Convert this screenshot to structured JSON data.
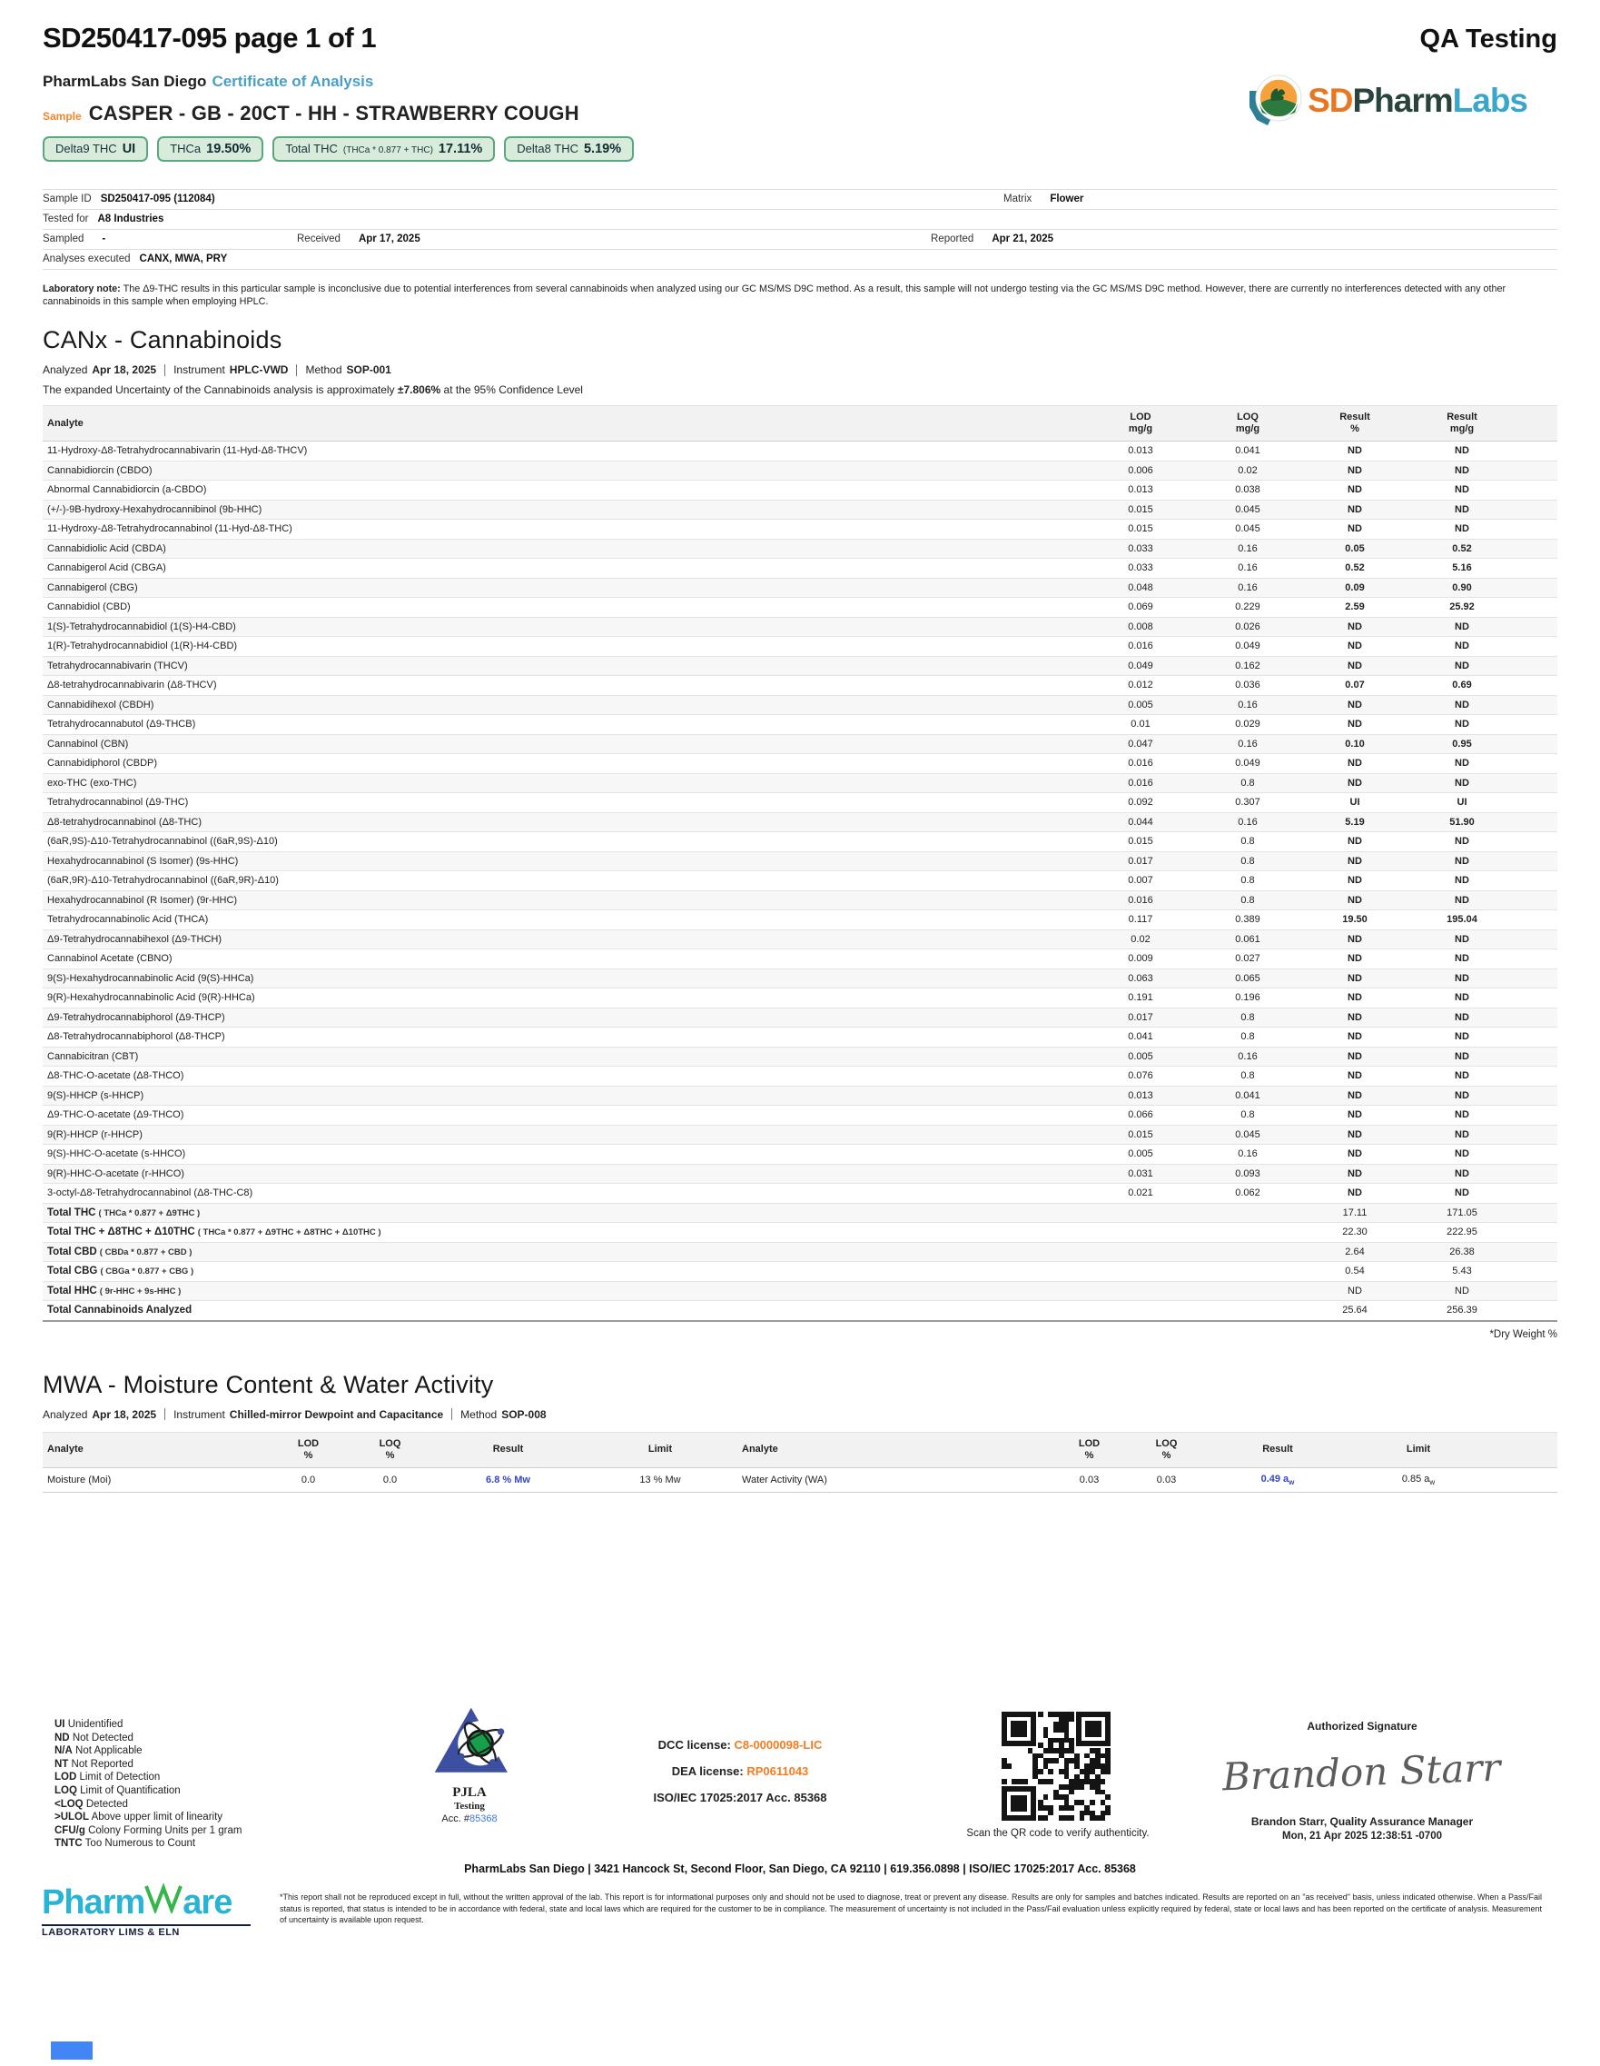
{
  "page": {
    "doc_id": "SD250417-095 page 1 of 1",
    "corner_label": "QA Testing"
  },
  "header": {
    "lab_name": "PharmLabs San Diego",
    "doc_type": "Certificate of Analysis",
    "sample_label": "Sample",
    "sample_name": "CASPER - GB - 20CT - HH - STRAWBERRY COUGH",
    "badges": [
      {
        "label": "Delta9 THC",
        "formula": "",
        "value": "UI"
      },
      {
        "label": "THCa",
        "formula": "",
        "value": "19.50%"
      },
      {
        "label": "Total THC",
        "formula": "(THCa * 0.877 + THC)",
        "value": "17.11%"
      },
      {
        "label": "Delta8 THC",
        "formula": "",
        "value": "5.19%"
      }
    ],
    "brand": {
      "sd": "SD",
      "pharm": "Pharm",
      "labs": "Labs"
    }
  },
  "sample_info": {
    "sample_id_label": "Sample ID",
    "sample_id": "SD250417-095 (112084)",
    "matrix_label": "Matrix",
    "matrix": "Flower",
    "tested_for_label": "Tested for",
    "tested_for": "A8 Industries",
    "sampled_label": "Sampled",
    "sampled": "-",
    "received_label": "Received",
    "received": "Apr 17, 2025",
    "reported_label": "Reported",
    "reported": "Apr 21, 2025",
    "analyses_label": "Analyses executed",
    "analyses": "CANX, MWA, PRY"
  },
  "lab_note": {
    "label": "Laboratory note:",
    "text": "The Δ9-THC results in this particular sample is inconclusive due to potential interferences from several cannabinoids when analyzed using our GC MS/MS D9C method. As a result, this sample will not undergo testing via the GC MS/MS D9C method. However, there are currently no interferences detected with any other cannabinoids in this sample when employing HPLC."
  },
  "canx": {
    "title": "CANx - Cannabinoids",
    "meta": {
      "analyzed_label": "Analyzed",
      "analyzed": "Apr 18, 2025",
      "instrument_label": "Instrument",
      "instrument": "HPLC-VWD",
      "method_label": "Method",
      "method": "SOP-001"
    },
    "uncertainty_pre": "The expanded Uncertainty of the Cannabinoids analysis is approximately ",
    "uncertainty_bold": "±7.806%",
    "uncertainty_post": " at the 95% Confidence Level",
    "columns": {
      "analyte": "Analyte",
      "lod": "LOD",
      "loq": "LOQ",
      "result1": "Result",
      "result2": "Result",
      "unit_mgg": "mg/g",
      "unit_pct": "%"
    },
    "rows": [
      {
        "analyte": "11-Hydroxy-Δ8-Tetrahydrocannabivarin (11-Hyd-Δ8-THCV)",
        "lod": "0.013",
        "loq": "0.041",
        "pct": "ND",
        "mgg": "ND"
      },
      {
        "analyte": "Cannabidiorcin (CBDO)",
        "lod": "0.006",
        "loq": "0.02",
        "pct": "ND",
        "mgg": "ND"
      },
      {
        "analyte": "Abnormal Cannabidiorcin (a-CBDO)",
        "lod": "0.013",
        "loq": "0.038",
        "pct": "ND",
        "mgg": "ND"
      },
      {
        "analyte": "(+/-)-9B-hydroxy-Hexahydrocannibinol (9b-HHC)",
        "lod": "0.015",
        "loq": "0.045",
        "pct": "ND",
        "mgg": "ND"
      },
      {
        "analyte": "11-Hydroxy-Δ8-Tetrahydrocannabinol (11-Hyd-Δ8-THC)",
        "lod": "0.015",
        "loq": "0.045",
        "pct": "ND",
        "mgg": "ND"
      },
      {
        "analyte": "Cannabidiolic Acid (CBDA)",
        "lod": "0.033",
        "loq": "0.16",
        "pct": "0.05",
        "mgg": "0.52"
      },
      {
        "analyte": "Cannabigerol Acid (CBGA)",
        "lod": "0.033",
        "loq": "0.16",
        "pct": "0.52",
        "mgg": "5.16"
      },
      {
        "analyte": "Cannabigerol (CBG)",
        "lod": "0.048",
        "loq": "0.16",
        "pct": "0.09",
        "mgg": "0.90"
      },
      {
        "analyte": "Cannabidiol (CBD)",
        "lod": "0.069",
        "loq": "0.229",
        "pct": "2.59",
        "mgg": "25.92"
      },
      {
        "analyte": "1(S)-Tetrahydrocannabidiol (1(S)-H4-CBD)",
        "lod": "0.008",
        "loq": "0.026",
        "pct": "ND",
        "mgg": "ND"
      },
      {
        "analyte": "1(R)-Tetrahydrocannabidiol (1(R)-H4-CBD)",
        "lod": "0.016",
        "loq": "0.049",
        "pct": "ND",
        "mgg": "ND"
      },
      {
        "analyte": "Tetrahydrocannabivarin (THCV)",
        "lod": "0.049",
        "loq": "0.162",
        "pct": "ND",
        "mgg": "ND"
      },
      {
        "analyte": "Δ8-tetrahydrocannabivarin (Δ8-THCV)",
        "lod": "0.012",
        "loq": "0.036",
        "pct": "0.07",
        "mgg": "0.69"
      },
      {
        "analyte": "Cannabidihexol (CBDH)",
        "lod": "0.005",
        "loq": "0.16",
        "pct": "ND",
        "mgg": "ND"
      },
      {
        "analyte": "Tetrahydrocannabutol (Δ9-THCB)",
        "lod": "0.01",
        "loq": "0.029",
        "pct": "ND",
        "mgg": "ND"
      },
      {
        "analyte": "Cannabinol (CBN)",
        "lod": "0.047",
        "loq": "0.16",
        "pct": "0.10",
        "mgg": "0.95"
      },
      {
        "analyte": "Cannabidiphorol (CBDP)",
        "lod": "0.016",
        "loq": "0.049",
        "pct": "ND",
        "mgg": "ND"
      },
      {
        "analyte": "exo-THC (exo-THC)",
        "lod": "0.016",
        "loq": "0.8",
        "pct": "ND",
        "mgg": "ND"
      },
      {
        "analyte": "Tetrahydrocannabinol (Δ9-THC)",
        "lod": "0.092",
        "loq": "0.307",
        "pct": "UI",
        "mgg": "UI"
      },
      {
        "analyte": "Δ8-tetrahydrocannabinol (Δ8-THC)",
        "lod": "0.044",
        "loq": "0.16",
        "pct": "5.19",
        "mgg": "51.90"
      },
      {
        "analyte": "(6aR,9S)-Δ10-Tetrahydrocannabinol ((6aR,9S)-Δ10)",
        "lod": "0.015",
        "loq": "0.8",
        "pct": "ND",
        "mgg": "ND"
      },
      {
        "analyte": "Hexahydrocannabinol (S Isomer) (9s-HHC)",
        "lod": "0.017",
        "loq": "0.8",
        "pct": "ND",
        "mgg": "ND"
      },
      {
        "analyte": "(6aR,9R)-Δ10-Tetrahydrocannabinol ((6aR,9R)-Δ10)",
        "lod": "0.007",
        "loq": "0.8",
        "pct": "ND",
        "mgg": "ND"
      },
      {
        "analyte": "Hexahydrocannabinol (R Isomer) (9r-HHC)",
        "lod": "0.016",
        "loq": "0.8",
        "pct": "ND",
        "mgg": "ND"
      },
      {
        "analyte": "Tetrahydrocannabinolic Acid (THCA)",
        "lod": "0.117",
        "loq": "0.389",
        "pct": "19.50",
        "mgg": "195.04"
      },
      {
        "analyte": "Δ9-Tetrahydrocannabihexol (Δ9-THCH)",
        "lod": "0.02",
        "loq": "0.061",
        "pct": "ND",
        "mgg": "ND"
      },
      {
        "analyte": "Cannabinol Acetate (CBNO)",
        "lod": "0.009",
        "loq": "0.027",
        "pct": "ND",
        "mgg": "ND"
      },
      {
        "analyte": "9(S)-Hexahydrocannabinolic Acid (9(S)-HHCa)",
        "lod": "0.063",
        "loq": "0.065",
        "pct": "ND",
        "mgg": "ND"
      },
      {
        "analyte": "9(R)-Hexahydrocannabinolic Acid (9(R)-HHCa)",
        "lod": "0.191",
        "loq": "0.196",
        "pct": "ND",
        "mgg": "ND"
      },
      {
        "analyte": "Δ9-Tetrahydrocannabiphorol (Δ9-THCP)",
        "lod": "0.017",
        "loq": "0.8",
        "pct": "ND",
        "mgg": "ND"
      },
      {
        "analyte": "Δ8-Tetrahydrocannabiphorol (Δ8-THCP)",
        "lod": "0.041",
        "loq": "0.8",
        "pct": "ND",
        "mgg": "ND"
      },
      {
        "analyte": "Cannabicitran (CBT)",
        "lod": "0.005",
        "loq": "0.16",
        "pct": "ND",
        "mgg": "ND"
      },
      {
        "analyte": "Δ8-THC-O-acetate (Δ8-THCO)",
        "lod": "0.076",
        "loq": "0.8",
        "pct": "ND",
        "mgg": "ND"
      },
      {
        "analyte": "9(S)-HHCP (s-HHCP)",
        "lod": "0.013",
        "loq": "0.041",
        "pct": "ND",
        "mgg": "ND"
      },
      {
        "analyte": "Δ9-THC-O-acetate (Δ9-THCO)",
        "lod": "0.066",
        "loq": "0.8",
        "pct": "ND",
        "mgg": "ND"
      },
      {
        "analyte": "9(R)-HHCP (r-HHCP)",
        "lod": "0.015",
        "loq": "0.045",
        "pct": "ND",
        "mgg": "ND"
      },
      {
        "analyte": "9(S)-HHC-O-acetate (s-HHCO)",
        "lod": "0.005",
        "loq": "0.16",
        "pct": "ND",
        "mgg": "ND"
      },
      {
        "analyte": "9(R)-HHC-O-acetate (r-HHCO)",
        "lod": "0.031",
        "loq": "0.093",
        "pct": "ND",
        "mgg": "ND"
      },
      {
        "analyte": "3-octyl-Δ8-Tetrahydrocannabinol (Δ8-THC-C8)",
        "lod": "0.021",
        "loq": "0.062",
        "pct": "ND",
        "mgg": "ND"
      }
    ],
    "totals": [
      {
        "label": "Total THC",
        "formula": "( THCa * 0.877 + Δ9THC )",
        "pct": "17.11",
        "mgg": "171.05"
      },
      {
        "label": "Total THC + Δ8THC + Δ10THC",
        "formula": "( THCa * 0.877 + Δ9THC + Δ8THC + Δ10THC )",
        "pct": "22.30",
        "mgg": "222.95"
      },
      {
        "label": "Total CBD",
        "formula": "( CBDa * 0.877 + CBD )",
        "pct": "2.64",
        "mgg": "26.38"
      },
      {
        "label": "Total CBG",
        "formula": "( CBGa * 0.877 + CBG )",
        "pct": "0.54",
        "mgg": "5.43"
      },
      {
        "label": "Total HHC",
        "formula": "( 9r-HHC + 9s-HHC )",
        "pct": "ND",
        "mgg": "ND"
      },
      {
        "label": "Total Cannabinoids Analyzed",
        "formula": "",
        "pct": "25.64",
        "mgg": "256.39"
      }
    ],
    "footnote": "*Dry Weight %"
  },
  "mwa": {
    "title": "MWA - Moisture Content & Water Activity",
    "meta": {
      "analyzed_label": "Analyzed",
      "analyzed": "Apr 18, 2025",
      "instrument_label": "Instrument",
      "instrument": "Chilled-mirror Dewpoint and Capacitance",
      "method_label": "Method",
      "method": "SOP-008"
    },
    "columns": {
      "analyte": "Analyte",
      "lod": "LOD",
      "loq": "LOQ",
      "unit_pct": "%",
      "result": "Result",
      "limit": "Limit"
    },
    "moisture": {
      "analyte": "Moisture (Moi)",
      "lod": "0.0",
      "loq": "0.0",
      "result": "6.8 % Mw",
      "limit": "13 % Mw"
    },
    "water": {
      "analyte": "Water Activity (WA)",
      "lod": "0.03",
      "loq": "0.03",
      "result": "0.49 a",
      "result_sub": "w",
      "limit": "0.85 a",
      "limit_sub": "w"
    }
  },
  "footer": {
    "legend": [
      {
        "abbr": "UI",
        "text": "Unidentified"
      },
      {
        "abbr": "ND",
        "text": "Not Detected"
      },
      {
        "abbr": "N/A",
        "text": "Not Applicable"
      },
      {
        "abbr": "NT",
        "text": "Not Reported"
      },
      {
        "abbr": "LOD",
        "text": "Limit of Detection"
      },
      {
        "abbr": "LOQ",
        "text": "Limit of Quantification"
      },
      {
        "abbr": "<LOQ",
        "text": "Detected"
      },
      {
        "abbr": ">ULOL",
        "text": "Above upper limit of linearity"
      },
      {
        "abbr": "CFU/g",
        "text": "Colony Forming Units per 1 gram"
      },
      {
        "abbr": "TNTC",
        "text": "Too Numerous to Count"
      }
    ],
    "pjla": {
      "name": "PJLA",
      "sub": "Testing",
      "acc_label": "Acc. #",
      "acc_num": "85368"
    },
    "licenses": {
      "dcc_label": "DCC license:",
      "dcc": "C8-0000098-LIC",
      "dea_label": "DEA license:",
      "dea": "RP0611043",
      "iso": "ISO/IEC 17025:2017 Acc. 85368"
    },
    "qr_caption": "Scan the QR code to verify authenticity.",
    "signature": {
      "title": "Authorized Signature",
      "script": "Brandon Starr",
      "name_line": "Brandon Starr, Quality Assurance Manager",
      "date_line": "Mon, 21 Apr 2025 12:38:51 -0700"
    },
    "address": "PharmLabs San Diego | 3421 Hancock St, Second Floor, San Diego, CA 92110 | 619.356.0898 | ISO/IEC 17025:2017 Acc. 85368",
    "disclaimer": "*This report shall not be reproduced except in full, without the written approval of the lab. This report is for informational purposes only and should not be used to diagnose, treat or prevent any disease. Results are only for samples and batches indicated. Results are reported on an \"as received\" basis, unless indicated otherwise. When a Pass/Fail status is reported, that status is intended to be in accordance with federal, state and local laws which are required for the customer to be in compliance. The measurement of uncertainty is not included in the Pass/Fail evaluation unless explicitly required by federal, state or local laws and has been reported on the certificate of analysis. Measurement of uncertainty is available upon request.",
    "pharmware": {
      "word1": "Pharm",
      "word2": "are",
      "tagline": "LABORATORY LIMS & ELN"
    }
  }
}
